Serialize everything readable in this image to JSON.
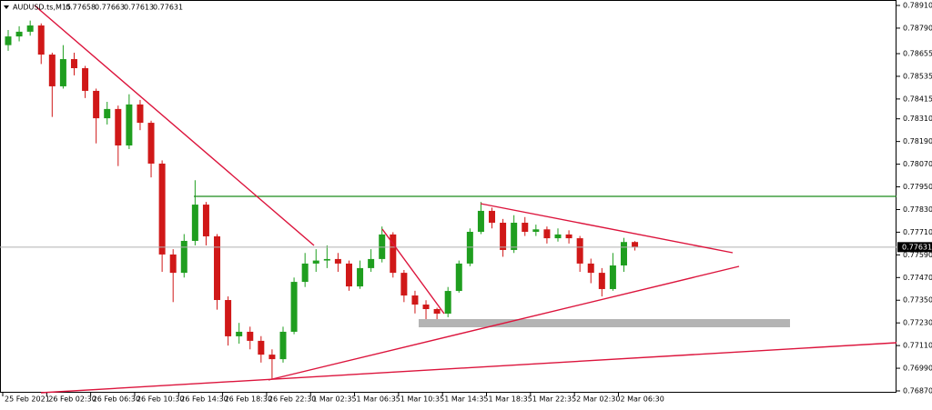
{
  "chart_data": {
    "type": "candlestick",
    "title": "AUDUSD.ts,M15",
    "up_color": "#1f9e1f",
    "down_color": "#d01818",
    "price_line_color": "#b0b0b0",
    "ylim": [
      0.7687,
      0.7891
    ],
    "yticks": [
      {
        "value": 0.7891,
        "label": "0.78910"
      },
      {
        "value": 0.7879,
        "label": "0.78790"
      },
      {
        "value": 0.78655,
        "label": "0.78655"
      },
      {
        "value": 0.78535,
        "label": "0.78535"
      },
      {
        "value": 0.78415,
        "label": "0.78415"
      },
      {
        "value": 0.7831,
        "label": "0.78310"
      },
      {
        "value": 0.7819,
        "label": "0.78190"
      },
      {
        "value": 0.7807,
        "label": "0.78070"
      },
      {
        "value": 0.7795,
        "label": "0.77950"
      },
      {
        "value": 0.7783,
        "label": "0.77830"
      },
      {
        "value": 0.7771,
        "label": "0.77710"
      },
      {
        "value": 0.7759,
        "label": "0.77590"
      },
      {
        "value": 0.7747,
        "label": "0.77470"
      },
      {
        "value": 0.7735,
        "label": "0.77350"
      },
      {
        "value": 0.7723,
        "label": "0.77230"
      },
      {
        "value": 0.7711,
        "label": "0.77110"
      },
      {
        "value": 0.7699,
        "label": "0.76990"
      },
      {
        "value": 0.7687,
        "label": "0.76870"
      }
    ],
    "xticks": [
      {
        "value": 0,
        "label": "25 Feb 2021"
      },
      {
        "value": 4,
        "label": "26 Feb 02:30"
      },
      {
        "value": 8,
        "label": "26 Feb 06:30"
      },
      {
        "value": 12,
        "label": "26 Feb 10:30"
      },
      {
        "value": 16,
        "label": "26 Feb 14:30"
      },
      {
        "value": 20,
        "label": "26 Feb 18:30"
      },
      {
        "value": 24,
        "label": "26 Feb 22:30"
      },
      {
        "value": 28,
        "label": "1 Mar 02:35"
      },
      {
        "value": 32,
        "label": "1 Mar 06:35"
      },
      {
        "value": 36,
        "label": "1 Mar 10:35"
      },
      {
        "value": 40,
        "label": "1 Mar 14:35"
      },
      {
        "value": 44,
        "label": "1 Mar 18:35"
      },
      {
        "value": 48,
        "label": "1 Mar 22:35"
      },
      {
        "value": 52,
        "label": "2 Mar 02:30"
      },
      {
        "value": 56,
        "label": "2 Mar 06:30"
      }
    ],
    "candles": [
      [
        0.787,
        0.7878,
        0.7867,
        0.78746
      ],
      [
        0.78746,
        0.788,
        0.7872,
        0.78771
      ],
      [
        0.78771,
        0.7883,
        0.7875,
        0.78804
      ],
      [
        0.78804,
        0.78815,
        0.786,
        0.7865
      ],
      [
        0.7865,
        0.7866,
        0.7832,
        0.78482
      ],
      [
        0.78482,
        0.787,
        0.7847,
        0.78626
      ],
      [
        0.78626,
        0.7866,
        0.7854,
        0.78578
      ],
      [
        0.78578,
        0.7859,
        0.7842,
        0.78458
      ],
      [
        0.78458,
        0.7847,
        0.7818,
        0.78313
      ],
      [
        0.78313,
        0.784,
        0.7828,
        0.78362
      ],
      [
        0.78362,
        0.7838,
        0.7806,
        0.78169
      ],
      [
        0.78169,
        0.7844,
        0.7815,
        0.78386
      ],
      [
        0.78386,
        0.7841,
        0.7825,
        0.78289
      ],
      [
        0.78289,
        0.783,
        0.78,
        0.78073
      ],
      [
        0.78073,
        0.7809,
        0.775,
        0.77592
      ],
      [
        0.77592,
        0.7762,
        0.7734,
        0.77495
      ],
      [
        0.77495,
        0.777,
        0.7747,
        0.77664
      ],
      [
        0.77664,
        0.77985,
        0.7764,
        0.77856
      ],
      [
        0.77856,
        0.7787,
        0.7764,
        0.77688
      ],
      [
        0.77688,
        0.777,
        0.773,
        0.77351
      ],
      [
        0.77351,
        0.7737,
        0.7711,
        0.77159
      ],
      [
        0.77159,
        0.7723,
        0.7712,
        0.77183
      ],
      [
        0.77183,
        0.7721,
        0.7709,
        0.77135
      ],
      [
        0.77135,
        0.7716,
        0.7702,
        0.77062
      ],
      [
        0.77062,
        0.7709,
        0.7693,
        0.77038
      ],
      [
        0.77038,
        0.7721,
        0.7702,
        0.77183
      ],
      [
        0.77183,
        0.7747,
        0.7717,
        0.77447
      ],
      [
        0.77447,
        0.776,
        0.7742,
        0.77544
      ],
      [
        0.77544,
        0.7762,
        0.775,
        0.7756
      ],
      [
        0.7756,
        0.7764,
        0.7752,
        0.77568
      ],
      [
        0.77568,
        0.776,
        0.775,
        0.77544
      ],
      [
        0.77544,
        0.7756,
        0.774,
        0.77423
      ],
      [
        0.77423,
        0.7756,
        0.7741,
        0.7752
      ],
      [
        0.7752,
        0.7762,
        0.775,
        0.77568
      ],
      [
        0.77568,
        0.7774,
        0.7755,
        0.77698
      ],
      [
        0.77698,
        0.7771,
        0.7747,
        0.77495
      ],
      [
        0.77495,
        0.7751,
        0.7734,
        0.77375
      ],
      [
        0.77375,
        0.774,
        0.7728,
        0.77327
      ],
      [
        0.77327,
        0.7735,
        0.7723,
        0.77303
      ],
      [
        0.77303,
        0.7731,
        0.7724,
        0.77279
      ],
      [
        0.77279,
        0.7742,
        0.7726,
        0.77399
      ],
      [
        0.77399,
        0.7756,
        0.7739,
        0.77544
      ],
      [
        0.77544,
        0.7773,
        0.7753,
        0.77712
      ],
      [
        0.77712,
        0.7787,
        0.777,
        0.77823
      ],
      [
        0.77823,
        0.7784,
        0.7773,
        0.7776
      ],
      [
        0.7776,
        0.7778,
        0.7758,
        0.77616
      ],
      [
        0.77616,
        0.778,
        0.776,
        0.7776
      ],
      [
        0.7776,
        0.7779,
        0.7769,
        0.77712
      ],
      [
        0.77712,
        0.7775,
        0.7769,
        0.77725
      ],
      [
        0.77725,
        0.7774,
        0.7765,
        0.77678
      ],
      [
        0.77678,
        0.7773,
        0.7766,
        0.77698
      ],
      [
        0.77698,
        0.7772,
        0.7765,
        0.77678
      ],
      [
        0.77678,
        0.7769,
        0.775,
        0.77544
      ],
      [
        0.77544,
        0.7757,
        0.7744,
        0.77495
      ],
      [
        0.77495,
        0.7752,
        0.7737,
        0.77409
      ],
      [
        0.77409,
        0.776,
        0.774,
        0.77534
      ],
      [
        0.77534,
        0.7768,
        0.775,
        0.77658
      ],
      [
        0.77658,
        0.77663,
        0.77613,
        0.77631
      ]
    ]
  }
}
